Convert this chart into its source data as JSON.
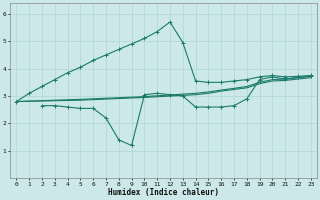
{
  "xlabel": "Humidex (Indice chaleur)",
  "background_color": "#cce8e8",
  "grid_color": "#aed4d4",
  "line_color": "#1a7a6a",
  "xlim": [
    -0.5,
    23.5
  ],
  "ylim": [
    0,
    6.4
  ],
  "xticks": [
    0,
    1,
    2,
    3,
    4,
    5,
    6,
    7,
    8,
    9,
    10,
    11,
    12,
    13,
    14,
    15,
    16,
    17,
    18,
    19,
    20,
    21,
    22,
    23
  ],
  "yticks": [
    1,
    2,
    3,
    4,
    5,
    6
  ],
  "line_up_x": [
    0,
    1,
    2,
    3,
    4,
    5,
    6,
    7,
    8,
    9,
    10,
    11,
    12,
    13,
    14,
    15,
    16,
    17,
    18,
    19,
    20,
    21,
    22,
    23
  ],
  "line_up_y": [
    2.8,
    3.1,
    3.35,
    3.6,
    3.85,
    4.05,
    4.3,
    4.5,
    4.7,
    4.9,
    5.1,
    5.35,
    5.7,
    4.95,
    3.55,
    3.5,
    3.5,
    3.55,
    3.6,
    3.7,
    3.75,
    3.7,
    3.72,
    3.75
  ],
  "line_down_x": [
    2,
    3,
    4,
    5,
    6,
    7,
    8,
    9,
    10,
    11,
    12,
    13,
    14,
    15,
    16,
    17,
    18,
    19,
    20,
    21,
    22,
    23
  ],
  "line_down_y": [
    2.65,
    2.65,
    2.6,
    2.55,
    2.55,
    2.2,
    1.4,
    1.2,
    3.05,
    3.1,
    3.05,
    3.0,
    2.6,
    2.6,
    2.6,
    2.65,
    2.9,
    3.6,
    3.7,
    3.62,
    3.68,
    3.73
  ],
  "line_flat1_x": [
    0,
    5,
    10,
    14,
    15,
    16,
    17,
    18,
    19,
    20,
    21,
    22,
    23
  ],
  "line_flat1_y": [
    2.8,
    2.88,
    2.98,
    3.1,
    3.15,
    3.22,
    3.28,
    3.35,
    3.5,
    3.6,
    3.62,
    3.67,
    3.72
  ],
  "line_flat2_x": [
    0,
    5,
    10,
    14,
    15,
    16,
    17,
    18,
    19,
    20,
    21,
    22,
    23
  ],
  "line_flat2_y": [
    2.8,
    2.85,
    2.95,
    3.05,
    3.1,
    3.18,
    3.24,
    3.3,
    3.45,
    3.55,
    3.57,
    3.62,
    3.67
  ]
}
